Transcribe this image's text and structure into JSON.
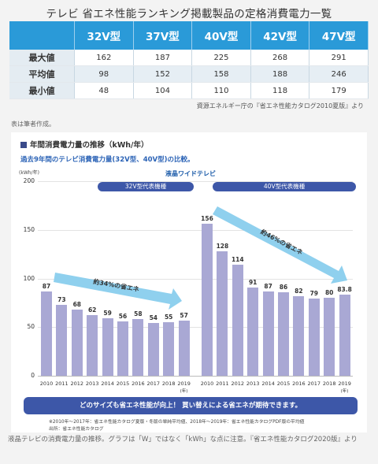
{
  "title": "テレビ 省エネ性能ランキング掲載製品の定格消費電力一覧",
  "spec_table": {
    "columns": [
      "32V型",
      "37V型",
      "40V型",
      "42V型",
      "47V型"
    ],
    "rows": [
      {
        "label": "最大値",
        "values": [
          "162",
          "187",
          "225",
          "268",
          "291"
        ]
      },
      {
        "label": "平均値",
        "values": [
          "98",
          "152",
          "158",
          "188",
          "246"
        ]
      },
      {
        "label": "最小値",
        "values": [
          "48",
          "104",
          "110",
          "118",
          "179"
        ]
      }
    ]
  },
  "table_source": "資源エネルギー庁の『省エネ性能カタログ2010夏版』より",
  "table_note": "表は筆者作成。",
  "chart_heading": "年間消費電力量の推移（kWh/年）",
  "chart_subheading": "過去9年間のテレビ消費電力量(32V型、40V型)の比較。",
  "chart_data": {
    "type": "bar",
    "title": "液晶ワイドテレビ",
    "ylabel": "(kWh/年)",
    "ylim": [
      0,
      200
    ],
    "yticks": [
      "0",
      "50",
      "100",
      "150",
      "200"
    ],
    "year_suffix": "(年)",
    "groups": [
      {
        "name": "32V型代表機種",
        "categories": [
          "2010",
          "2011",
          "2012",
          "2013",
          "2014",
          "2015",
          "2016",
          "2017",
          "2018",
          "2019"
        ],
        "values": [
          87,
          73,
          68,
          62,
          59,
          56,
          58,
          54,
          55,
          57
        ],
        "labels": [
          "87",
          "73",
          "68",
          "62",
          "59",
          "56",
          "58",
          "54",
          "55",
          "57"
        ],
        "annotation": "約34%の省エネ"
      },
      {
        "name": "40V型代表機種",
        "categories": [
          "2010",
          "2011",
          "2012",
          "2013",
          "2014",
          "2015",
          "2016",
          "2017",
          "2018",
          "2019"
        ],
        "values": [
          156,
          128,
          114,
          91,
          87,
          86,
          82,
          79,
          80,
          83.8
        ],
        "labels": [
          "156",
          "128",
          "114",
          "91",
          "87",
          "86",
          "82",
          "79",
          "80",
          "83.8"
        ],
        "annotation": "約46%の省エネ"
      }
    ],
    "colors": {
      "bar": "#a9a8d4",
      "arrow": "#8fd0ee",
      "badge": "#3d57a8"
    }
  },
  "banner": "どのサイズも省エネ性能が向上！ 買い替えによる省エネが期待できます。",
  "footnotes": {
    "line1": "※2010年～2017年：省エネ性能カタログ夏版・冬版の単純平均値、2018年～2019年：省エネ性能カタログPDF版の平均値",
    "line2": "出所：省エネ性能カタログ"
  },
  "caption": "液晶テレビの消費電力量の推移。グラフは「W」ではなく「kWh」な点に注意。『省エネ性能カタログ2020版』より"
}
